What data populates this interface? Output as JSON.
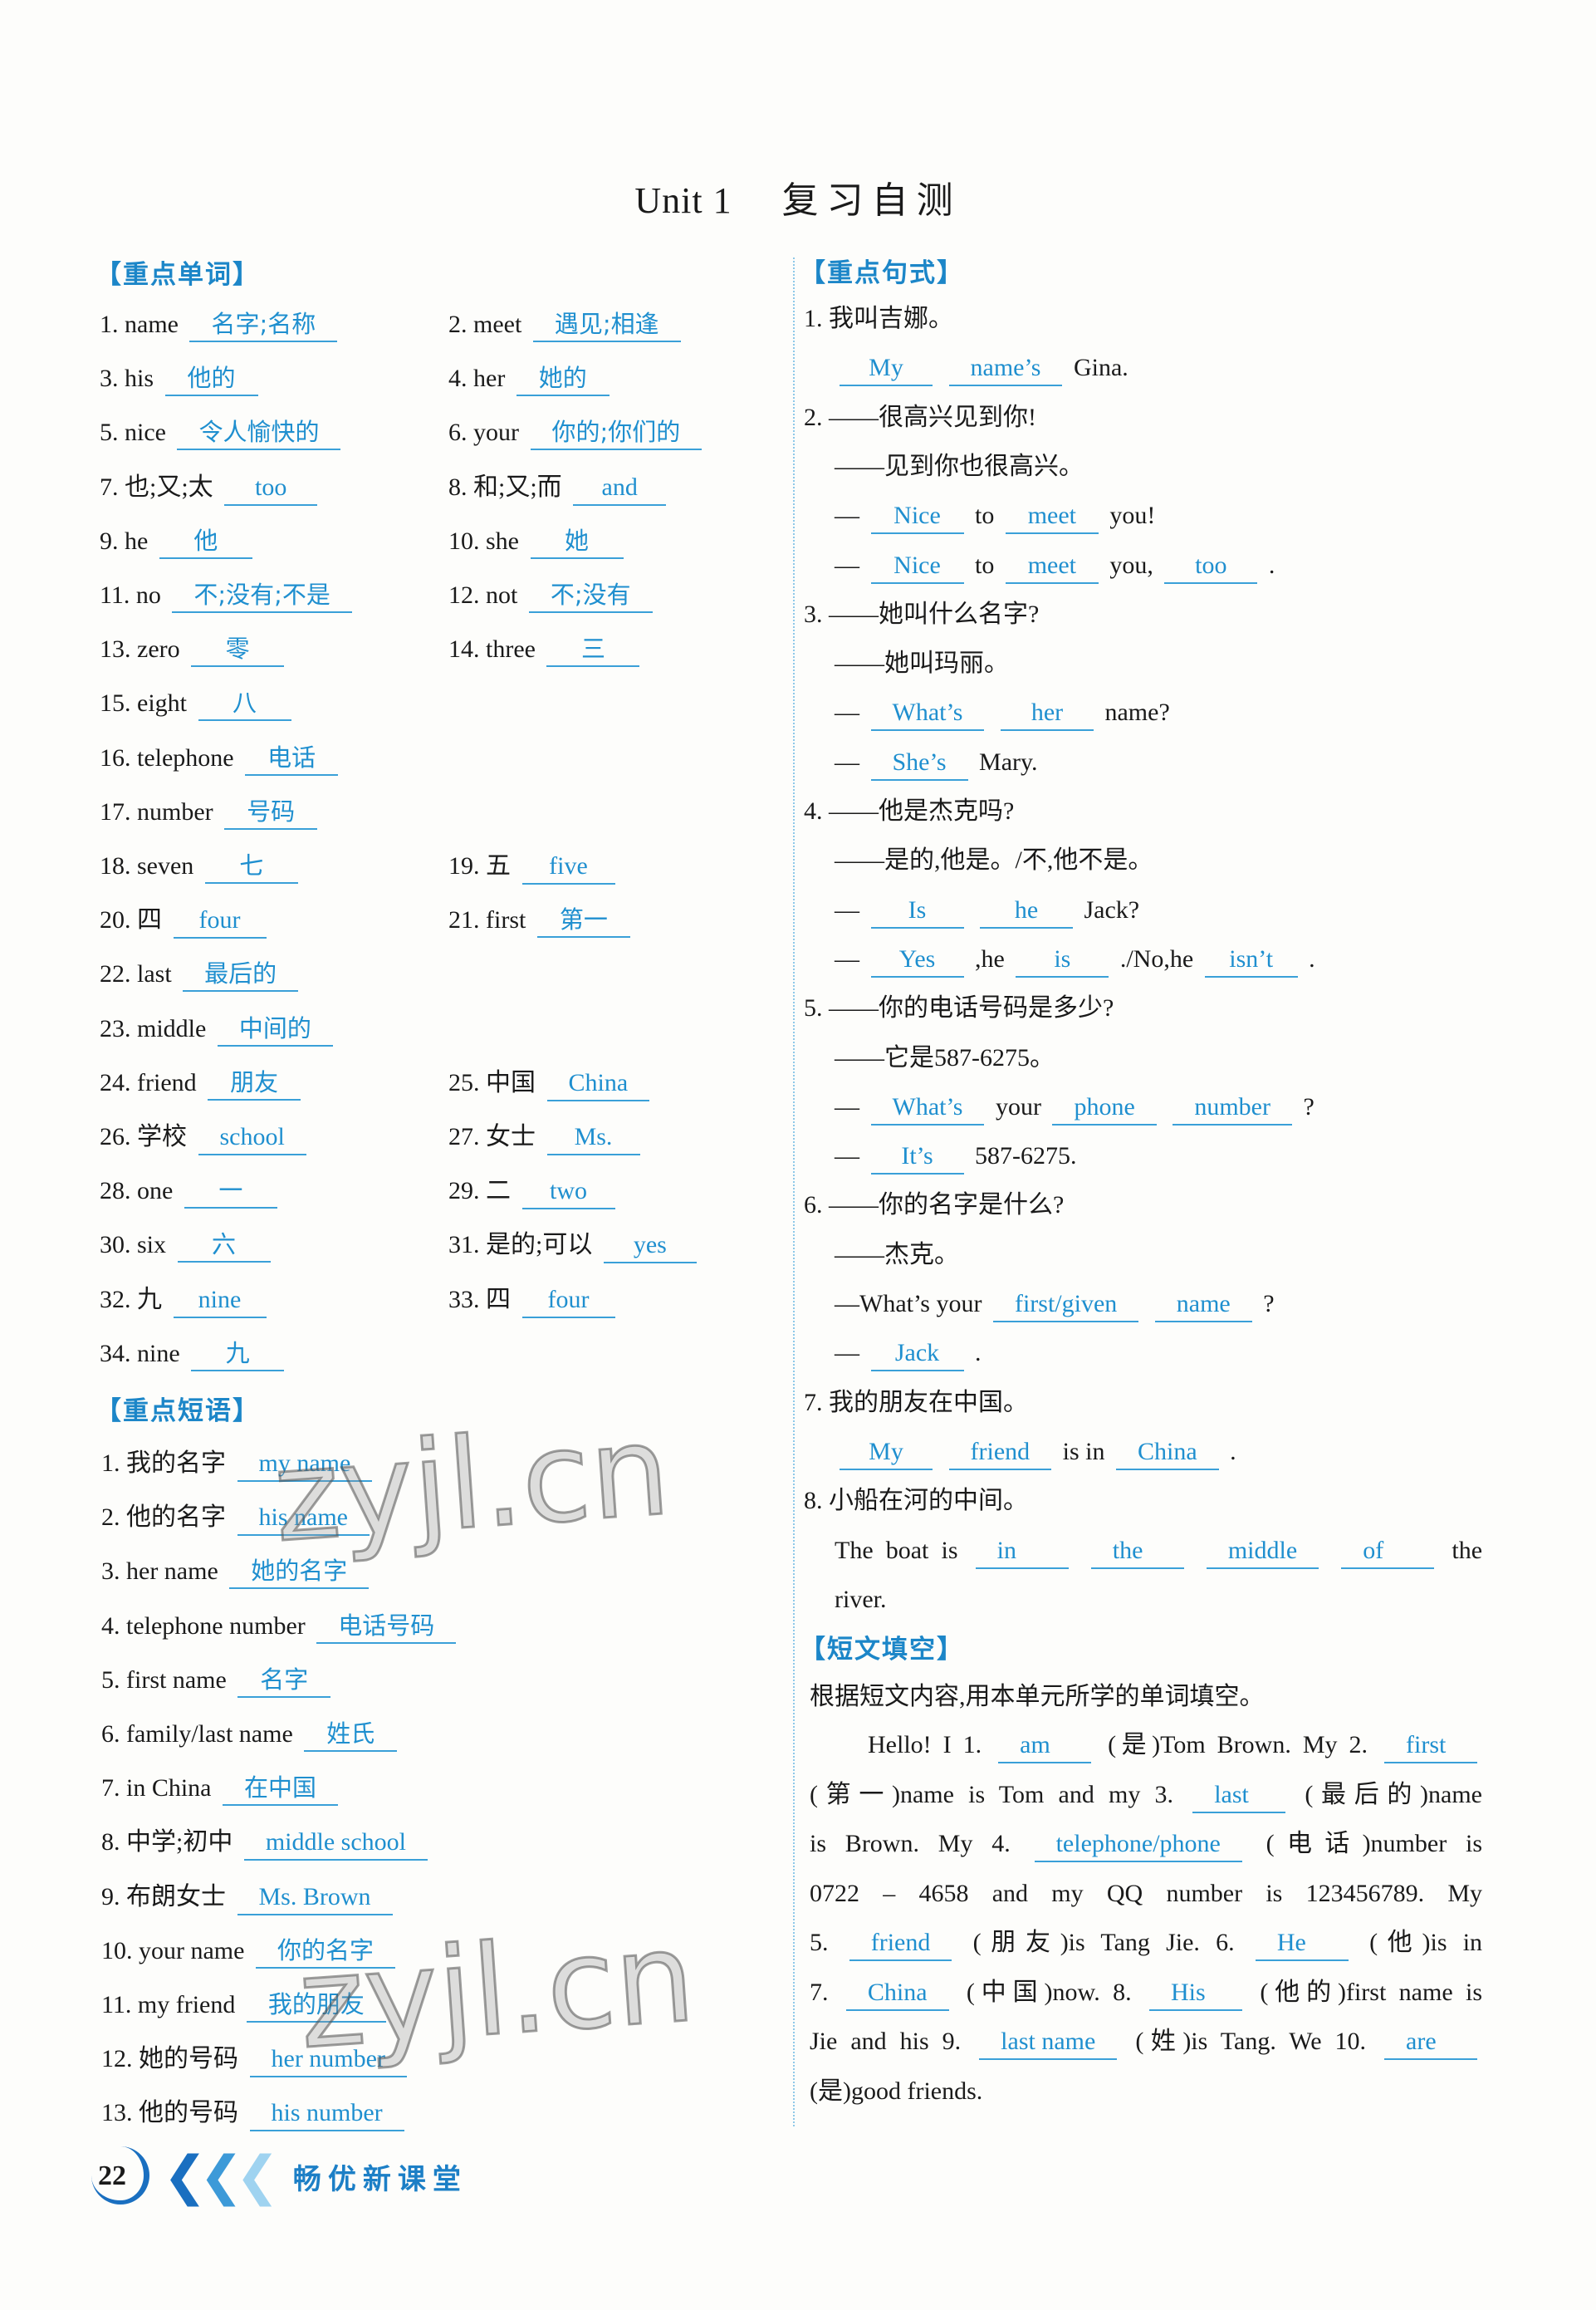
{
  "title": {
    "unit": "Unit 1",
    "cn": "复习自测"
  },
  "sections": {
    "vocab": "【重点单词】",
    "phrases": "【重点短语】",
    "sentences": "【重点句式】",
    "passage": "【短文填空】"
  },
  "vocab_rows": [
    [
      {
        "n": "1.",
        "q": "name",
        "a": "名字;名称"
      },
      {
        "n": "2.",
        "q": "meet",
        "a": "遇见;相逢"
      }
    ],
    [
      {
        "n": "3.",
        "q": "his",
        "a": "他的"
      },
      {
        "n": "4.",
        "q": "her",
        "a": "她的"
      }
    ],
    [
      {
        "n": "5.",
        "q": "nice",
        "a": "令人愉快的"
      },
      {
        "n": "6.",
        "q": "your",
        "a": "你的;你们的"
      }
    ],
    [
      {
        "n": "7.",
        "q": "也;又;太",
        "a": "too"
      },
      {
        "n": "8.",
        "q": "和;又;而",
        "a": "and"
      }
    ],
    [
      {
        "n": "9.",
        "q": "he",
        "a": "他"
      },
      {
        "n": "10.",
        "q": "she",
        "a": "她"
      }
    ],
    [
      {
        "n": "11.",
        "q": "no",
        "a": "不;没有;不是"
      },
      {
        "n": "12.",
        "q": "not",
        "a": "不;没有"
      }
    ],
    [
      {
        "n": "13.",
        "q": "zero",
        "a": "零"
      },
      {
        "n": "14.",
        "q": "three",
        "a": "三"
      }
    ],
    [
      {
        "n": "15.",
        "q": "eight",
        "a": "八"
      }
    ],
    [
      {
        "n": "16.",
        "q": "telephone",
        "a": "电话"
      }
    ],
    [
      {
        "n": "17.",
        "q": "number",
        "a": "号码"
      }
    ],
    [
      {
        "n": "18.",
        "q": "seven",
        "a": "七"
      },
      {
        "n": "19.",
        "q": "五",
        "a": "five"
      }
    ],
    [
      {
        "n": "20.",
        "q": "四",
        "a": "four"
      },
      {
        "n": "21.",
        "q": "first",
        "a": "第一"
      }
    ],
    [
      {
        "n": "22.",
        "q": "last",
        "a": "最后的"
      }
    ],
    [
      {
        "n": "23.",
        "q": "middle",
        "a": "中间的"
      }
    ],
    [
      {
        "n": "24.",
        "q": "friend",
        "a": "朋友"
      },
      {
        "n": "25.",
        "q": "中国",
        "a": "China"
      }
    ],
    [
      {
        "n": "26.",
        "q": "学校",
        "a": "school"
      },
      {
        "n": "27.",
        "q": "女士",
        "a": "Ms."
      }
    ],
    [
      {
        "n": "28.",
        "q": "one",
        "a": "一"
      },
      {
        "n": "29.",
        "q": "二",
        "a": "two"
      }
    ],
    [
      {
        "n": "30.",
        "q": "six",
        "a": "六"
      },
      {
        "n": "31.",
        "q": "是的;可以",
        "a": "yes"
      }
    ],
    [
      {
        "n": "32.",
        "q": "九",
        "a": "nine"
      },
      {
        "n": "33.",
        "q": "四",
        "a": "four"
      }
    ],
    [
      {
        "n": "34.",
        "q": "nine",
        "a": "九"
      }
    ]
  ],
  "phrase_rows": [
    {
      "n": "1.",
      "q": "我的名字",
      "a": "my name"
    },
    {
      "n": "2.",
      "q": "他的名字",
      "a": "his name"
    },
    {
      "n": "3.",
      "q": "her name",
      "a": "她的名字"
    },
    {
      "n": "4.",
      "q": "telephone number",
      "a": "电话号码"
    },
    {
      "n": "5.",
      "q": "first name",
      "a": "名字"
    },
    {
      "n": "6.",
      "q": "family/last name",
      "a": "姓氏"
    },
    {
      "n": "7.",
      "q": "in China",
      "a": "在中国"
    },
    {
      "n": "8.",
      "q": "中学;初中",
      "a": "middle school"
    },
    {
      "n": "9.",
      "q": "布朗女士",
      "a": "Ms. Brown"
    },
    {
      "n": "10.",
      "q": "your name",
      "a": "你的名字"
    },
    {
      "n": "11.",
      "q": "my friend",
      "a": "我的朋友"
    },
    {
      "n": "12.",
      "q": "她的号码",
      "a": "her number"
    },
    {
      "n": "13.",
      "q": "他的号码",
      "a": "his number"
    }
  ],
  "sentence_lines": [
    {
      "i": 0,
      "s": [
        {
          "t": "1. 我叫吉娜。"
        }
      ]
    },
    {
      "i": 1,
      "s": [
        {
          "b": "My"
        },
        {
          "b": "name’s"
        },
        {
          "t": "Gina."
        }
      ]
    },
    {
      "i": 0,
      "s": [
        {
          "t": "2. ——很高兴见到你!"
        }
      ]
    },
    {
      "i": 1,
      "s": [
        {
          "t": "——见到你也很高兴。"
        }
      ]
    },
    {
      "i": 1,
      "s": [
        {
          "t": "—"
        },
        {
          "b": "Nice"
        },
        {
          "t": "to"
        },
        {
          "b": "meet"
        },
        {
          "t": "you!"
        }
      ]
    },
    {
      "i": 1,
      "s": [
        {
          "t": "—"
        },
        {
          "b": "Nice"
        },
        {
          "t": "to"
        },
        {
          "b": "meet"
        },
        {
          "t": "you,"
        },
        {
          "b": "too"
        },
        {
          "t": "."
        }
      ]
    },
    {
      "i": 0,
      "s": [
        {
          "t": "3. ——她叫什么名字?"
        }
      ]
    },
    {
      "i": 1,
      "s": [
        {
          "t": "——她叫玛丽。"
        }
      ]
    },
    {
      "i": 1,
      "s": [
        {
          "t": "—"
        },
        {
          "b": "What’s"
        },
        {
          "b": "her"
        },
        {
          "t": "name?"
        }
      ]
    },
    {
      "i": 1,
      "s": [
        {
          "t": "—"
        },
        {
          "b": "She’s"
        },
        {
          "t": "Mary."
        }
      ]
    },
    {
      "i": 0,
      "s": [
        {
          "t": "4. ——他是杰克吗?"
        }
      ]
    },
    {
      "i": 1,
      "s": [
        {
          "t": "——是的,他是。/不,他不是。"
        }
      ]
    },
    {
      "i": 1,
      "s": [
        {
          "t": "—"
        },
        {
          "b": "Is"
        },
        {
          "b": "he"
        },
        {
          "t": "Jack?"
        }
      ]
    },
    {
      "i": 1,
      "s": [
        {
          "t": "—"
        },
        {
          "b": "Yes"
        },
        {
          "t": ",he"
        },
        {
          "b": "is"
        },
        {
          "t": "./No,he"
        },
        {
          "b": "isn’t"
        },
        {
          "t": "."
        }
      ]
    },
    {
      "i": 0,
      "s": [
        {
          "t": "5. ——你的电话号码是多少?"
        }
      ]
    },
    {
      "i": 1,
      "s": [
        {
          "t": "——它是587-6275。"
        }
      ]
    },
    {
      "i": 1,
      "s": [
        {
          "t": "—"
        },
        {
          "b": "What’s"
        },
        {
          "t": "your"
        },
        {
          "b": "phone"
        },
        {
          "b": "number"
        },
        {
          "t": "?"
        }
      ]
    },
    {
      "i": 1,
      "s": [
        {
          "t": "—"
        },
        {
          "b": "It’s"
        },
        {
          "t": "587-6275."
        }
      ]
    },
    {
      "i": 0,
      "s": [
        {
          "t": "6. ——你的名字是什么?"
        }
      ]
    },
    {
      "i": 1,
      "s": [
        {
          "t": "——杰克。"
        }
      ]
    },
    {
      "i": 1,
      "s": [
        {
          "t": "—What’s your"
        },
        {
          "b": "first/given"
        },
        {
          "b": "name"
        },
        {
          "t": "?"
        }
      ]
    },
    {
      "i": 1,
      "s": [
        {
          "t": "—"
        },
        {
          "b": "Jack"
        },
        {
          "t": "."
        }
      ]
    },
    {
      "i": 0,
      "s": [
        {
          "t": "7. 我的朋友在中国。"
        }
      ]
    },
    {
      "i": 1,
      "s": [
        {
          "b": "My"
        },
        {
          "b": "friend"
        },
        {
          "t": "is in"
        },
        {
          "b": "China"
        },
        {
          "t": "."
        }
      ]
    },
    {
      "i": 0,
      "s": [
        {
          "t": "8. 小船在河的中间。"
        }
      ]
    },
    {
      "i": 1,
      "j": true,
      "s": [
        {
          "t": "The boat is"
        },
        {
          "b": "in"
        },
        {
          "b": "the"
        },
        {
          "b": "middle"
        },
        {
          "b": "of"
        },
        {
          "t": "the"
        }
      ]
    },
    {
      "i": 1,
      "s": [
        {
          "t": "river."
        }
      ]
    }
  ],
  "passage": {
    "instruction": "根据短文内容,用本单元所学的单词填空。",
    "lines": [
      {
        "first": true,
        "s": [
          {
            "t": "Hello! I 1."
          },
          {
            "b": "am"
          },
          {
            "t": "(是)Tom Brown. My 2."
          },
          {
            "b": "first"
          }
        ]
      },
      {
        "s": [
          {
            "t": "(第一)name is Tom and my 3."
          },
          {
            "b": "last"
          },
          {
            "t": "(最后的)name"
          }
        ]
      },
      {
        "s": [
          {
            "t": "is Brown. My 4."
          },
          {
            "b": "telephone/phone"
          },
          {
            "t": "(电话)number is"
          }
        ]
      },
      {
        "s": [
          {
            "t": "0722 – 4658 and my QQ number is 123456789. My"
          }
        ]
      },
      {
        "s": [
          {
            "t": "5."
          },
          {
            "b": "friend"
          },
          {
            "t": "(朋友)is Tang Jie. 6."
          },
          {
            "b": "He"
          },
          {
            "t": "(他)is in"
          }
        ]
      },
      {
        "s": [
          {
            "t": "7."
          },
          {
            "b": "China"
          },
          {
            "t": "(中国)now. 8."
          },
          {
            "b": "His"
          },
          {
            "t": "(他的)first name is"
          }
        ]
      },
      {
        "s": [
          {
            "t": "Jie and his 9."
          },
          {
            "b": "last name"
          },
          {
            "t": "(姓)is Tang. We 10."
          },
          {
            "b": "are"
          }
        ]
      },
      {
        "last": true,
        "s": [
          {
            "t": "(是)good friends."
          }
        ]
      }
    ]
  },
  "footer": {
    "page": "22",
    "brand": "畅优新课堂"
  },
  "watermark": "zyjl.cn",
  "colors": {
    "answer": "#1f8fcf",
    "heading": "#1c86c8",
    "underline": "#3aa0d8"
  }
}
